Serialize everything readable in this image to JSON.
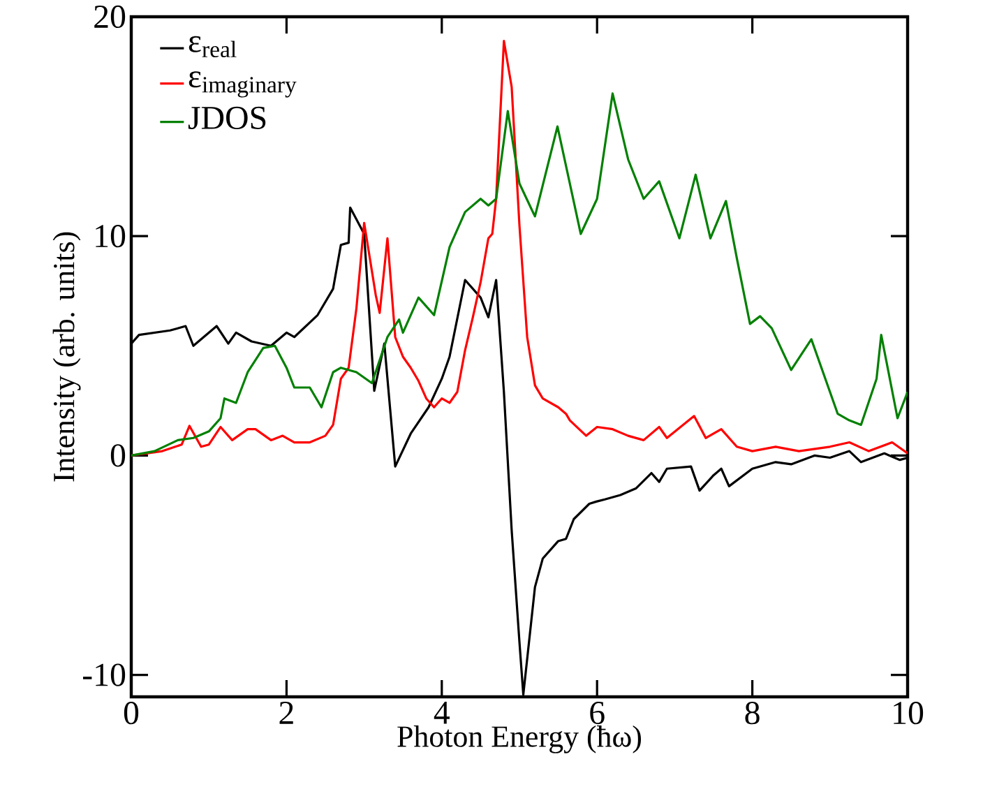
{
  "chart_data": {
    "type": "line",
    "xlabel": "Photon Energy (ħω)",
    "ylabel": "Intensity (arb. units)",
    "xlim": [
      0,
      10
    ],
    "ylim": [
      -11,
      20
    ],
    "xticks": [
      0,
      2,
      4,
      6,
      8,
      10
    ],
    "yticks": [
      -10,
      0,
      10,
      20
    ],
    "legend": "top left",
    "grid": false,
    "marker": "none",
    "line_style": "solid",
    "series": [
      {
        "name": "\\text{ε}_{\\text{real}}",
        "color": "#000000",
        "x": [
          0,
          0.1,
          0.5,
          0.7,
          0.8,
          1.1,
          1.25,
          1.35,
          1.55,
          1.8,
          2.0,
          2.1,
          2.4,
          2.6,
          2.7,
          2.8,
          2.82,
          3.0,
          3.13,
          3.26,
          3.4,
          3.6,
          3.83,
          4.0,
          4.1,
          4.3,
          4.5,
          4.6,
          4.7,
          4.8,
          4.9,
          5.0,
          5.05,
          5.2,
          5.3,
          5.5,
          5.6,
          5.7,
          5.9,
          5.99,
          6.1,
          6.3,
          6.5,
          6.7,
          6.8,
          6.9,
          7.21,
          7.32,
          7.5,
          7.6,
          7.7,
          8.0,
          8.3,
          8.5,
          8.8,
          9.0,
          9.25,
          9.4,
          9.7,
          9.9,
          10
        ],
        "values": [
          5.1,
          5.5,
          5.7,
          5.9,
          5.0,
          5.9,
          5.1,
          5.6,
          5.2,
          5.0,
          5.6,
          5.4,
          6.4,
          7.6,
          9.6,
          9.7,
          11.3,
          10.1,
          2.95,
          5.1,
          -0.5,
          1.0,
          2.2,
          3.5,
          4.5,
          8.0,
          7.2,
          6.3,
          8.0,
          2.9,
          -3.4,
          -8.5,
          -10.9,
          -6.0,
          -4.7,
          -3.9,
          -3.8,
          -2.9,
          -2.2,
          -2.1,
          -2.0,
          -1.8,
          -1.5,
          -0.8,
          -1.2,
          -0.6,
          -0.5,
          -1.6,
          -0.9,
          -0.6,
          -1.4,
          -0.6,
          -0.3,
          -0.4,
          0,
          -0.1,
          0.2,
          -0.3,
          0.1,
          -0.2,
          -0.1
        ]
      },
      {
        "name": "\\text{ε}_{\\text{imaginary}}",
        "color": "#ff0000",
        "x": [
          0,
          0.4,
          0.65,
          0.75,
          0.9,
          1.0,
          1.15,
          1.3,
          1.5,
          1.6,
          1.8,
          1.95,
          2.1,
          2.3,
          2.5,
          2.6,
          2.7,
          2.8,
          2.9,
          3.0,
          3.15,
          3.2,
          3.3,
          3.4,
          3.5,
          3.6,
          3.7,
          3.8,
          3.9,
          4.0,
          4.1,
          4.2,
          4.3,
          4.4,
          4.5,
          4.6,
          4.65,
          4.7,
          4.8,
          4.9,
          5.0,
          5.1,
          5.2,
          5.3,
          5.5,
          5.6,
          5.65,
          5.86,
          6.0,
          6.2,
          6.4,
          6.6,
          6.8,
          6.9,
          7.25,
          7.4,
          7.6,
          7.8,
          8.0,
          8.3,
          8.6,
          9.0,
          9.25,
          9.5,
          9.8,
          10
        ],
        "values": [
          0,
          0.2,
          0.5,
          1.35,
          0.4,
          0.5,
          1.3,
          0.7,
          1.2,
          1.2,
          0.7,
          0.9,
          0.6,
          0.6,
          0.9,
          1.4,
          3.5,
          4.0,
          6.7,
          10.6,
          7.3,
          6.5,
          9.9,
          5.4,
          4.5,
          4.0,
          3.4,
          2.6,
          2.2,
          2.6,
          2.4,
          2.9,
          4.8,
          6.3,
          7.9,
          9.9,
          10.1,
          11.7,
          18.9,
          16.8,
          10.5,
          5.4,
          3.2,
          2.6,
          2.2,
          1.9,
          1.6,
          0.9,
          1.3,
          1.2,
          0.9,
          0.7,
          1.3,
          0.8,
          1.8,
          0.8,
          1.2,
          0.4,
          0.2,
          0.4,
          0.2,
          0.4,
          0.6,
          0.2,
          0.6,
          0.1
        ]
      },
      {
        "name": "JDOS",
        "color": "#008000",
        "x": [
          0,
          0.3,
          0.6,
          0.8,
          1.0,
          1.15,
          1.2,
          1.35,
          1.5,
          1.7,
          1.85,
          2.0,
          2.1,
          2.3,
          2.45,
          2.6,
          2.7,
          2.9,
          3.1,
          3.3,
          3.45,
          3.5,
          3.7,
          3.9,
          4.1,
          4.3,
          4.5,
          4.6,
          4.7,
          4.85,
          5.0,
          5.2,
          5.49,
          5.79,
          6.0,
          6.2,
          6.4,
          6.6,
          6.8,
          7.06,
          7.27,
          7.46,
          7.66,
          7.8,
          7.97,
          8.1,
          8.25,
          8.5,
          8.76,
          9.1,
          9.25,
          9.4,
          9.6,
          9.66,
          9.87,
          10
        ],
        "values": [
          0,
          0.2,
          0.7,
          0.8,
          1.1,
          1.7,
          2.6,
          2.4,
          3.8,
          4.9,
          5.0,
          4.0,
          3.1,
          3.1,
          2.2,
          3.8,
          4.0,
          3.8,
          3.3,
          5.4,
          6.2,
          5.6,
          7.2,
          6.4,
          9.5,
          11.1,
          11.7,
          11.4,
          11.7,
          15.7,
          12.4,
          10.9,
          15.0,
          10.1,
          11.7,
          16.5,
          13.5,
          11.7,
          12.5,
          9.9,
          12.8,
          9.9,
          11.6,
          9.0,
          6.0,
          6.35,
          5.8,
          3.9,
          5.3,
          1.9,
          1.6,
          1.4,
          3.5,
          5.5,
          1.7,
          2.9
        ]
      }
    ]
  }
}
